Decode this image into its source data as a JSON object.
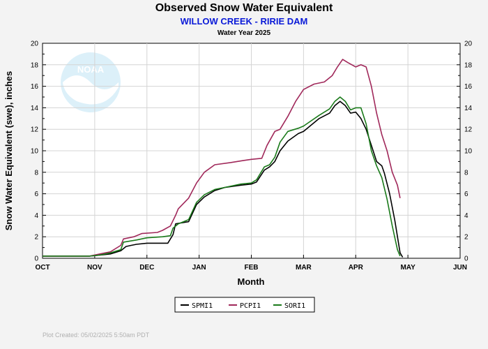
{
  "chart_data": {
    "type": "line",
    "title": "Observed Snow Water Equivalent",
    "subtitle": "WILLOW CREEK - RIRIE DAM",
    "subsubtitle": "Water Year 2025",
    "xlabel": "Month",
    "ylabel": "Snow Water Equivalent (swe),  inches",
    "ylim": [
      0,
      20
    ],
    "yticks": [
      0,
      2,
      4,
      6,
      8,
      10,
      12,
      14,
      16,
      18,
      20
    ],
    "months": [
      "OCT",
      "NOV",
      "DEC",
      "JAN",
      "FEB",
      "MAR",
      "APR",
      "MAY",
      "JUN"
    ],
    "grid": true,
    "legend_position": "bottom",
    "series": [
      {
        "name": "SPMI1",
        "color": "#000000",
        "points": [
          [
            0,
            0.2
          ],
          [
            0.5,
            0.2
          ],
          [
            0.9,
            0.2
          ],
          [
            1.1,
            0.3
          ],
          [
            1.3,
            0.4
          ],
          [
            1.5,
            0.7
          ],
          [
            1.6,
            1.1
          ],
          [
            1.7,
            1.2
          ],
          [
            1.8,
            1.3
          ],
          [
            2.0,
            1.4
          ],
          [
            2.4,
            1.4
          ],
          [
            2.5,
            2.2
          ],
          [
            2.55,
            3.2
          ],
          [
            2.8,
            3.4
          ],
          [
            2.95,
            5.0
          ],
          [
            3.1,
            5.7
          ],
          [
            3.3,
            6.3
          ],
          [
            3.5,
            6.6
          ],
          [
            3.8,
            6.8
          ],
          [
            4.0,
            6.9
          ],
          [
            4.1,
            7.1
          ],
          [
            4.25,
            8.2
          ],
          [
            4.35,
            8.5
          ],
          [
            4.45,
            9.0
          ],
          [
            4.55,
            10.0
          ],
          [
            4.7,
            10.9
          ],
          [
            4.9,
            11.6
          ],
          [
            5.0,
            11.8
          ],
          [
            5.15,
            12.4
          ],
          [
            5.3,
            13.0
          ],
          [
            5.5,
            13.5
          ],
          [
            5.6,
            14.2
          ],
          [
            5.7,
            14.6
          ],
          [
            5.8,
            14.2
          ],
          [
            5.9,
            13.5
          ],
          [
            6.0,
            13.6
          ],
          [
            6.1,
            13.0
          ],
          [
            6.2,
            12.0
          ],
          [
            6.3,
            10.5
          ],
          [
            6.4,
            9.0
          ],
          [
            6.5,
            8.6
          ],
          [
            6.55,
            7.9
          ],
          [
            6.65,
            6.0
          ],
          [
            6.75,
            3.5
          ],
          [
            6.85,
            0.5
          ],
          [
            6.9,
            0.1
          ]
        ]
      },
      {
        "name": "PCPI1",
        "color": "#a0285a",
        "points": [
          [
            0,
            0.2
          ],
          [
            0.5,
            0.2
          ],
          [
            0.9,
            0.2
          ],
          [
            1.1,
            0.4
          ],
          [
            1.3,
            0.6
          ],
          [
            1.5,
            1.2
          ],
          [
            1.55,
            1.8
          ],
          [
            1.75,
            2.0
          ],
          [
            1.9,
            2.3
          ],
          [
            2.2,
            2.4
          ],
          [
            2.3,
            2.6
          ],
          [
            2.45,
            3.0
          ],
          [
            2.55,
            4.0
          ],
          [
            2.6,
            4.6
          ],
          [
            2.8,
            5.6
          ],
          [
            2.95,
            7.0
          ],
          [
            3.1,
            8.0
          ],
          [
            3.3,
            8.7
          ],
          [
            3.6,
            8.9
          ],
          [
            3.85,
            9.1
          ],
          [
            4.0,
            9.2
          ],
          [
            4.2,
            9.3
          ],
          [
            4.3,
            10.5
          ],
          [
            4.45,
            11.8
          ],
          [
            4.55,
            12.0
          ],
          [
            4.7,
            13.2
          ],
          [
            4.85,
            14.6
          ],
          [
            5.0,
            15.7
          ],
          [
            5.2,
            16.2
          ],
          [
            5.4,
            16.4
          ],
          [
            5.55,
            17.0
          ],
          [
            5.65,
            17.8
          ],
          [
            5.75,
            18.5
          ],
          [
            5.85,
            18.2
          ],
          [
            6.0,
            17.8
          ],
          [
            6.1,
            18.0
          ],
          [
            6.2,
            17.8
          ],
          [
            6.3,
            16.0
          ],
          [
            6.4,
            13.5
          ],
          [
            6.5,
            11.5
          ],
          [
            6.6,
            10.0
          ],
          [
            6.7,
            8.0
          ],
          [
            6.8,
            6.8
          ],
          [
            6.85,
            5.6
          ]
        ]
      },
      {
        "name": "SORI1",
        "color": "#1a7a1a",
        "points": [
          [
            0,
            0.2
          ],
          [
            0.5,
            0.2
          ],
          [
            0.9,
            0.2
          ],
          [
            1.1,
            0.3
          ],
          [
            1.3,
            0.5
          ],
          [
            1.5,
            0.8
          ],
          [
            1.55,
            1.5
          ],
          [
            1.8,
            1.7
          ],
          [
            2.0,
            1.9
          ],
          [
            2.3,
            2.0
          ],
          [
            2.45,
            2.1
          ],
          [
            2.5,
            2.8
          ],
          [
            2.6,
            3.2
          ],
          [
            2.8,
            3.6
          ],
          [
            2.95,
            5.2
          ],
          [
            3.1,
            5.9
          ],
          [
            3.3,
            6.4
          ],
          [
            3.5,
            6.6
          ],
          [
            3.8,
            6.9
          ],
          [
            4.0,
            7.0
          ],
          [
            4.1,
            7.3
          ],
          [
            4.25,
            8.5
          ],
          [
            4.35,
            8.7
          ],
          [
            4.45,
            9.4
          ],
          [
            4.55,
            10.8
          ],
          [
            4.7,
            11.8
          ],
          [
            4.9,
            12.1
          ],
          [
            5.0,
            12.3
          ],
          [
            5.15,
            12.8
          ],
          [
            5.3,
            13.3
          ],
          [
            5.5,
            13.9
          ],
          [
            5.6,
            14.6
          ],
          [
            5.7,
            15.0
          ],
          [
            5.8,
            14.6
          ],
          [
            5.9,
            13.8
          ],
          [
            6.0,
            14.0
          ],
          [
            6.1,
            14.0
          ],
          [
            6.2,
            12.5
          ],
          [
            6.3,
            10.0
          ],
          [
            6.4,
            8.6
          ],
          [
            6.5,
            7.5
          ],
          [
            6.6,
            5.5
          ],
          [
            6.7,
            3.0
          ],
          [
            6.8,
            0.8
          ],
          [
            6.85,
            0.2
          ]
        ]
      }
    ]
  },
  "footer": "Plot Created: 05/02/2025 5:50am PDT",
  "logo_text": "NOAA"
}
